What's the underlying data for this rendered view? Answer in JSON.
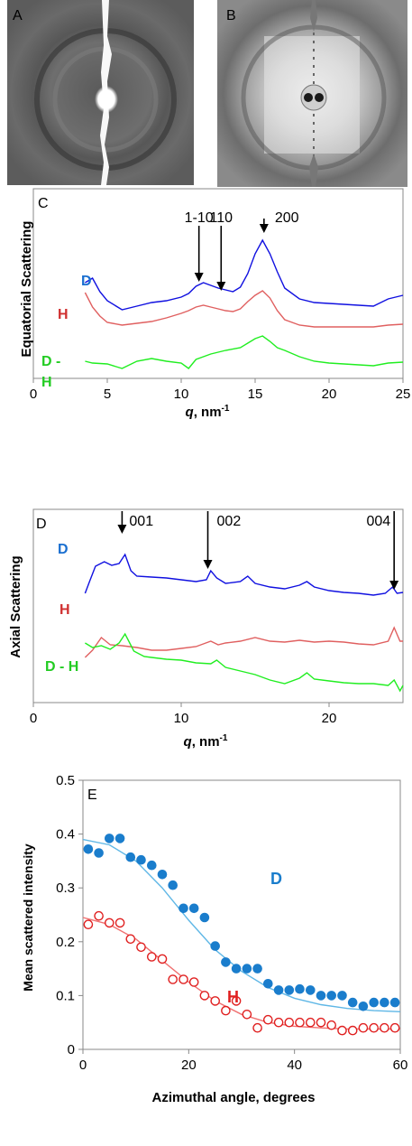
{
  "panels": {
    "A": {
      "label": "A"
    },
    "B": {
      "label": "B"
    }
  },
  "chart_data": [
    {
      "panel": "C",
      "type": "line",
      "xlabel": "q, nm",
      "xlabel_sup": "-1",
      "ylabel": "Equatorial Scattering",
      "xlim": [
        0,
        25
      ],
      "xticks": [
        "0",
        "5",
        "10",
        "15",
        "20",
        "25"
      ],
      "annotations": [
        {
          "text": "1-10",
          "x": 11.2
        },
        {
          "text": "110",
          "x": 12.7
        },
        {
          "text": "200",
          "x": 15.6
        }
      ],
      "series": [
        {
          "name": "D",
          "color": "#1010e0",
          "x": [
            3.5,
            4,
            4.5,
            5,
            6,
            7,
            8,
            9,
            10,
            10.5,
            11,
            11.5,
            12,
            12.5,
            13,
            13.5,
            14,
            14.5,
            15,
            15.5,
            16,
            16.5,
            17,
            18,
            19,
            20,
            21,
            22,
            23,
            23.5,
            24,
            24.5,
            25
          ],
          "y": [
            0.88,
            0.93,
            0.78,
            0.68,
            0.58,
            0.62,
            0.66,
            0.68,
            0.72,
            0.76,
            0.84,
            0.88,
            0.85,
            0.82,
            0.8,
            0.78,
            0.83,
            0.98,
            1.2,
            1.35,
            1.2,
            1.0,
            0.82,
            0.7,
            0.66,
            0.65,
            0.64,
            0.63,
            0.62,
            0.66,
            0.7,
            0.72,
            0.74
          ]
        },
        {
          "name": "H",
          "color": "#e06060",
          "x": [
            3.5,
            4,
            4.5,
            5,
            6,
            7,
            8,
            9,
            10,
            10.5,
            11,
            11.5,
            12,
            12.5,
            13,
            13.5,
            14,
            14.5,
            15,
            15.5,
            16,
            16.5,
            17,
            18,
            19,
            20,
            21,
            22,
            23,
            24,
            25
          ],
          "y": [
            0.88,
            0.72,
            0.62,
            0.55,
            0.52,
            0.54,
            0.56,
            0.6,
            0.65,
            0.68,
            0.72,
            0.74,
            0.72,
            0.7,
            0.68,
            0.67,
            0.7,
            0.78,
            0.85,
            0.9,
            0.82,
            0.68,
            0.58,
            0.52,
            0.5,
            0.5,
            0.5,
            0.5,
            0.5,
            0.52,
            0.53
          ]
        },
        {
          "name": "D - H",
          "color": "#20ee20",
          "x": [
            3.5,
            4,
            5,
            6,
            7,
            8,
            9,
            10,
            10.5,
            11,
            12,
            13,
            14,
            14.5,
            15,
            15.5,
            16,
            16.5,
            17,
            18,
            19,
            20,
            21,
            22,
            23,
            24,
            25
          ],
          "y": [
            0.3,
            0.28,
            0.27,
            0.22,
            0.3,
            0.33,
            0.3,
            0.28,
            0.22,
            0.32,
            0.38,
            0.42,
            0.45,
            0.5,
            0.55,
            0.58,
            0.52,
            0.45,
            0.42,
            0.35,
            0.3,
            0.28,
            0.27,
            0.26,
            0.25,
            0.28,
            0.29
          ]
        }
      ]
    },
    {
      "panel": "D",
      "type": "line",
      "xlabel": "q, nm",
      "xlabel_sup": "-1",
      "ylabel": "Axial Scattering",
      "xlim": [
        0,
        25
      ],
      "xticks": [
        "0",
        "10",
        "20"
      ],
      "xtick_values": [
        0,
        10,
        20
      ],
      "annotations": [
        {
          "text": "001",
          "x": 6
        },
        {
          "text": "002",
          "x": 11.8
        },
        {
          "text": "004",
          "x": 24.4
        }
      ],
      "series": [
        {
          "name": "D",
          "color": "#1010e0",
          "x": [
            3.5,
            3.8,
            4.2,
            4.8,
            5.3,
            5.8,
            6.2,
            6.6,
            7,
            8,
            9,
            10,
            11,
            11.7,
            12,
            12.4,
            13,
            14,
            14.5,
            15,
            16,
            17,
            18,
            18.5,
            19,
            20,
            21,
            22,
            23,
            23.8,
            24.3,
            24.6,
            25
          ],
          "y": [
            0.55,
            0.68,
            0.85,
            0.9,
            0.86,
            0.88,
            0.98,
            0.8,
            0.74,
            0.73,
            0.72,
            0.7,
            0.68,
            0.7,
            0.8,
            0.72,
            0.66,
            0.68,
            0.74,
            0.66,
            0.62,
            0.6,
            0.64,
            0.68,
            0.62,
            0.58,
            0.56,
            0.55,
            0.53,
            0.55,
            0.62,
            0.55,
            0.56
          ]
        },
        {
          "name": "H",
          "color": "#e06060",
          "x": [
            3.5,
            4,
            4.6,
            5.2,
            6,
            7,
            8,
            9,
            10,
            11,
            12,
            12.5,
            13,
            14,
            15,
            16,
            17,
            18,
            19,
            20,
            21,
            22,
            23,
            24,
            24.4,
            24.8,
            25
          ],
          "y": [
            0.12,
            0.2,
            0.34,
            0.26,
            0.25,
            0.23,
            0.2,
            0.2,
            0.22,
            0.24,
            0.3,
            0.26,
            0.28,
            0.3,
            0.34,
            0.3,
            0.29,
            0.31,
            0.29,
            0.3,
            0.29,
            0.27,
            0.26,
            0.3,
            0.45,
            0.3,
            0.3
          ]
        },
        {
          "name": "D - H",
          "color": "#20ee20",
          "x": [
            3.5,
            4,
            4.6,
            5.2,
            5.8,
            6.2,
            6.8,
            7.5,
            8,
            9,
            10,
            11,
            12,
            12.4,
            13,
            14,
            15,
            16,
            17,
            18,
            18.5,
            19,
            20,
            21,
            22,
            23,
            24,
            24.4,
            24.8,
            25
          ],
          "y": [
            -0.05,
            -0.1,
            -0.08,
            -0.12,
            -0.05,
            0.05,
            -0.14,
            -0.2,
            -0.21,
            -0.23,
            -0.24,
            -0.27,
            -0.28,
            -0.24,
            -0.32,
            -0.36,
            -0.4,
            -0.46,
            -0.5,
            -0.44,
            -0.38,
            -0.45,
            -0.47,
            -0.49,
            -0.5,
            -0.5,
            -0.52,
            -0.46,
            -0.58,
            -0.52
          ]
        }
      ]
    },
    {
      "panel": "E",
      "type": "scatter",
      "xlabel": "Azimuthal angle, degrees",
      "ylabel": "Mean scattered intensity",
      "xlim": [
        0,
        60
      ],
      "ylim": [
        0,
        0.5
      ],
      "xticks": [
        "0",
        "20",
        "40",
        "60"
      ],
      "xtick_values": [
        0,
        20,
        40,
        60
      ],
      "yticks": [
        "0",
        "0.1",
        "0.2",
        "0.3",
        "0.4",
        "0.5"
      ],
      "ytick_values": [
        0,
        0.1,
        0.2,
        0.3,
        0.4,
        0.5
      ],
      "series": [
        {
          "name": "D",
          "color": "#1a7dcc",
          "filled": true,
          "x": [
            1,
            3,
            5,
            7,
            9,
            11,
            13,
            15,
            17,
            19,
            21,
            23,
            25,
            27,
            29,
            31,
            33,
            35,
            37,
            39,
            41,
            43,
            45,
            47,
            49,
            51,
            53,
            55,
            57,
            59
          ],
          "y": [
            0.372,
            0.365,
            0.392,
            0.392,
            0.357,
            0.352,
            0.342,
            0.325,
            0.305,
            0.262,
            0.262,
            0.245,
            0.192,
            0.162,
            0.15,
            0.15,
            0.15,
            0.122,
            0.11,
            0.11,
            0.112,
            0.11,
            0.1,
            0.1,
            0.1,
            0.087,
            0.08,
            0.087,
            0.087,
            0.087
          ],
          "fit_x": [
            0,
            5,
            10,
            15,
            20,
            25,
            30,
            35,
            40,
            45,
            50,
            55,
            60
          ],
          "fit_y": [
            0.39,
            0.38,
            0.35,
            0.3,
            0.24,
            0.185,
            0.145,
            0.115,
            0.095,
            0.083,
            0.076,
            0.072,
            0.07
          ]
        },
        {
          "name": "H",
          "color": "#e02020",
          "filled": false,
          "x": [
            1,
            3,
            5,
            7,
            9,
            11,
            13,
            15,
            17,
            19,
            21,
            23,
            25,
            27,
            29,
            31,
            33,
            35,
            37,
            39,
            41,
            43,
            45,
            47,
            49,
            51,
            53,
            55,
            57,
            59
          ],
          "y": [
            0.232,
            0.248,
            0.235,
            0.235,
            0.205,
            0.19,
            0.172,
            0.168,
            0.13,
            0.13,
            0.125,
            0.1,
            0.09,
            0.072,
            0.09,
            0.065,
            0.04,
            0.055,
            0.05,
            0.05,
            0.05,
            0.05,
            0.05,
            0.045,
            0.035,
            0.035,
            0.04,
            0.04,
            0.04,
            0.04
          ],
          "fit_x": [
            0,
            5,
            10,
            15,
            20,
            25,
            30,
            35,
            40,
            45,
            50,
            55,
            60
          ],
          "fit_y": [
            0.245,
            0.232,
            0.205,
            0.165,
            0.125,
            0.09,
            0.065,
            0.05,
            0.043,
            0.04,
            0.038,
            0.038,
            0.038
          ]
        }
      ]
    }
  ]
}
